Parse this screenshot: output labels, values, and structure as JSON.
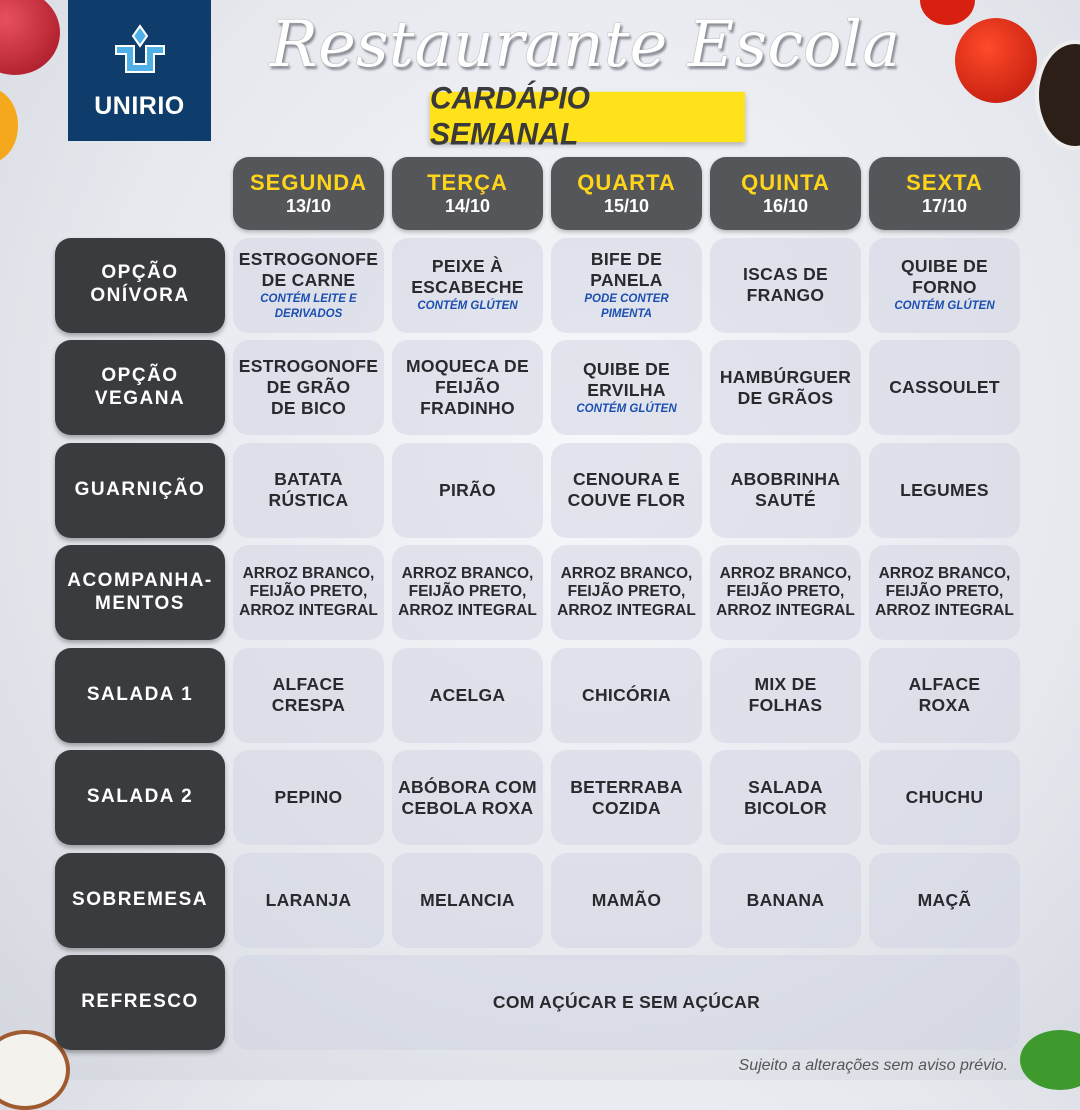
{
  "logo": {
    "text": "UNIRIO"
  },
  "title": "Restaurante Escola",
  "subtitle": "CARDÁPIO SEMANAL",
  "days": [
    {
      "name": "SEGUNDA",
      "date": "13/10"
    },
    {
      "name": "TERÇA",
      "date": "14/10"
    },
    {
      "name": "QUARTA",
      "date": "15/10"
    },
    {
      "name": "QUINTA",
      "date": "16/10"
    },
    {
      "name": "SEXTA",
      "date": "17/10"
    }
  ],
  "rows": [
    {
      "label": "OPÇÃO\nONÍVORA",
      "cells": [
        {
          "text": "ESTROGONOFE\nDE CARNE",
          "note": "CONTÉM LEITE E\nDERIVADOS"
        },
        {
          "text": "PEIXE À\nESCABECHE",
          "note": "CONTÉM GLÚTEN"
        },
        {
          "text": "BIFE DE\nPANELA",
          "note": "PODE CONTER\nPIMENTA"
        },
        {
          "text": "ISCAS DE\nFRANGO"
        },
        {
          "text": "QUIBE DE\nFORNO",
          "note": "CONTÉM GLÚTEN"
        }
      ]
    },
    {
      "label": "OPÇÃO\nVEGANA",
      "cells": [
        {
          "text": "ESTROGONOFE\nDE GRÃO\nDE BICO"
        },
        {
          "text": "MOQUECA DE\nFEIJÃO\nFRADINHO"
        },
        {
          "text": "QUIBE DE\nERVILHA",
          "note": "CONTÉM GLÚTEN"
        },
        {
          "text": "HAMBÚRGUER\nDE GRÃOS"
        },
        {
          "text": "CASSOULET"
        }
      ]
    },
    {
      "label": "GUARNIÇÃO",
      "cells": [
        {
          "text": "BATATA\nRÚSTICA"
        },
        {
          "text": "PIRÃO"
        },
        {
          "text": "CENOURA E\nCOUVE FLOR"
        },
        {
          "text": "ABOBRINHA\nSAUTÉ"
        },
        {
          "text": "LEGUMES"
        }
      ]
    },
    {
      "label": "ACOMPANHA-\nMENTOS",
      "cells": [
        {
          "text": "ARROZ BRANCO,\nFEIJÃO PRETO,\nARROZ INTEGRAL"
        },
        {
          "text": "ARROZ BRANCO,\nFEIJÃO PRETO,\nARROZ INTEGRAL"
        },
        {
          "text": "ARROZ BRANCO,\nFEIJÃO PRETO,\nARROZ INTEGRAL"
        },
        {
          "text": "ARROZ BRANCO,\nFEIJÃO PRETO,\nARROZ INTEGRAL"
        },
        {
          "text": "ARROZ BRANCO,\nFEIJÃO PRETO,\nARROZ INTEGRAL"
        }
      ]
    },
    {
      "label": "SALADA 1",
      "cells": [
        {
          "text": "ALFACE\nCRESPA"
        },
        {
          "text": "ACELGA"
        },
        {
          "text": "CHICÓRIA"
        },
        {
          "text": "MIX DE\nFOLHAS"
        },
        {
          "text": "ALFACE\nROXA"
        }
      ]
    },
    {
      "label": "SALADA 2",
      "cells": [
        {
          "text": "PEPINO"
        },
        {
          "text": "ABÓBORA COM\nCEBOLA ROXA"
        },
        {
          "text": "BETERRABA\nCOZIDA"
        },
        {
          "text": "SALADA\nBICOLOR"
        },
        {
          "text": "CHUCHU"
        }
      ]
    },
    {
      "label": "SOBREMESA",
      "cells": [
        {
          "text": "LARANJA"
        },
        {
          "text": "MELANCIA"
        },
        {
          "text": "MAMÃO"
        },
        {
          "text": "BANANA"
        },
        {
          "text": "MAÇÃ"
        }
      ]
    }
  ],
  "refresco": {
    "label": "REFRESCO",
    "text": "COM AÇÚCAR E SEM AÇÚCAR"
  },
  "footer": "Sujeito a alterações sem aviso prévio.",
  "colors": {
    "brand": "#0f3d6b",
    "highlight": "#ffe21a",
    "day_text": "#ffd51a",
    "note": "#1c4fb0",
    "row_header": "#3a3b3f"
  }
}
